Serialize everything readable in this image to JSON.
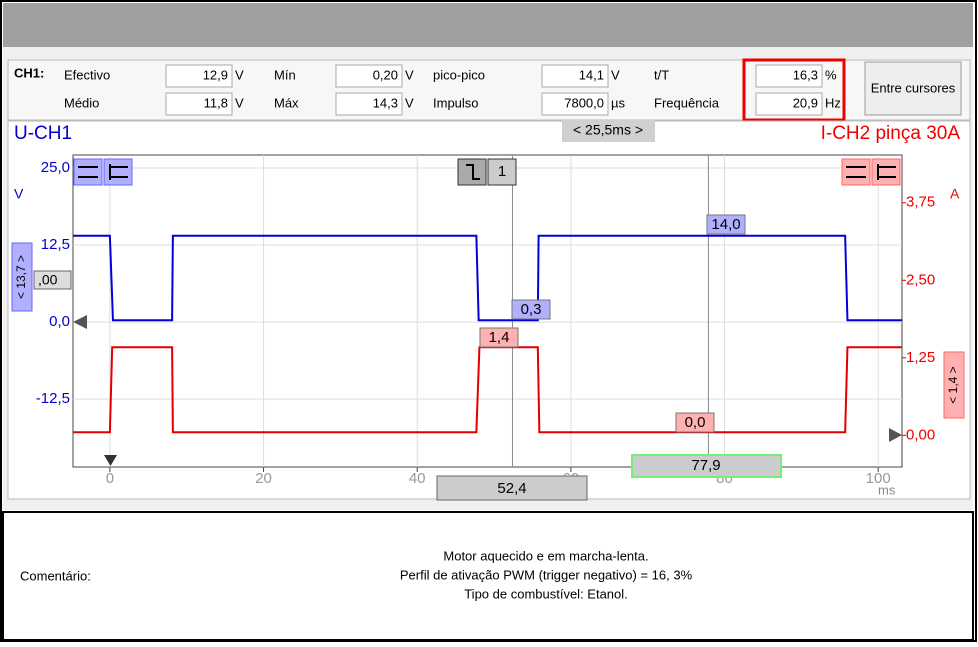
{
  "measurements": {
    "channel": "CH1:",
    "items": [
      {
        "label": "Efectivo",
        "value": "12,9",
        "unit": "V"
      },
      {
        "label": "Médio",
        "value": "11,8",
        "unit": "V"
      },
      {
        "label": "Mín",
        "value": "0,20",
        "unit": "V"
      },
      {
        "label": "Máx",
        "value": "14,3",
        "unit": "V"
      },
      {
        "label": "pico-pico",
        "value": "14,1",
        "unit": "V"
      },
      {
        "label": "Impulso",
        "value": "7800,0",
        "unit": "µs"
      },
      {
        "label": "t/T",
        "value": "16,3",
        "unit": "%"
      },
      {
        "label": "Frequência",
        "value": "20,9",
        "unit": "Hz"
      }
    ],
    "button": "Entre cursores"
  },
  "scope": {
    "left_title": "U-CH1",
    "right_title": "I-CH2 pinça 30A",
    "delta": "< 25,5ms >",
    "trigger_channel": "1",
    "y_unit": "V",
    "y2_unit": "A",
    "x_unit": "ms",
    "left_marker": "< 13,7 >",
    "right_marker": "< 1,4 >",
    "left_offset": ",00",
    "xlim": [
      -4.8,
      103.1
    ],
    "ylim": [
      -23.5,
      27.1
    ],
    "y2lim": [
      -0.51,
      4.52
    ],
    "xticks": [
      0,
      20,
      40,
      60,
      80,
      100
    ],
    "yticks": [
      {
        "value": 25,
        "label": "25,0"
      },
      {
        "value": 12.5,
        "label": "12,5"
      },
      {
        "value": 0,
        "label": "0,0"
      },
      {
        "value": -12.5,
        "label": "-12,5"
      }
    ],
    "y2ticks": [
      {
        "value": 3.75,
        "label": "3,75"
      },
      {
        "value": 2.5,
        "label": "2,50"
      },
      {
        "value": 1.25,
        "label": "1,25"
      },
      {
        "value": 0,
        "label": "0,00"
      }
    ],
    "grid": true,
    "series": [
      {
        "color": "#0000dd",
        "x": [
          -4.8,
          0,
          0.4,
          8.1,
          8.2,
          47.7,
          48.0,
          55.7,
          55.8,
          95.7,
          96.0,
          103.1
        ],
        "values": [
          14.0,
          14.0,
          0.3,
          0.3,
          14.0,
          14.0,
          0.3,
          0.3,
          14.0,
          14.0,
          0.3,
          0.3
        ]
      },
      {
        "color": "#e00000",
        "axis": "y2",
        "x": [
          -4.8,
          0,
          0.3,
          8.1,
          8.2,
          47.7,
          48.1,
          55.7,
          55.9,
          95.7,
          96.0,
          103.1
        ],
        "values": [
          0.05,
          0.05,
          1.42,
          1.42,
          0.05,
          0.05,
          1.42,
          1.42,
          0.05,
          0.05,
          1.42,
          1.42
        ]
      }
    ],
    "cursors": [
      {
        "value": 52.4,
        "label": "52,4"
      },
      {
        "value": 77.9,
        "label": "77,9"
      }
    ],
    "readouts": [
      "14,0",
      "0,3",
      "1,4",
      "0,0"
    ]
  },
  "comment": {
    "label": "Comentário:",
    "lines": [
      "Motor aquecido e em marcha-lenta.",
      "Perfil de ativação PWM (trigger negativo) = 16, 3%",
      "Tipo de combustível: Etanol."
    ]
  }
}
